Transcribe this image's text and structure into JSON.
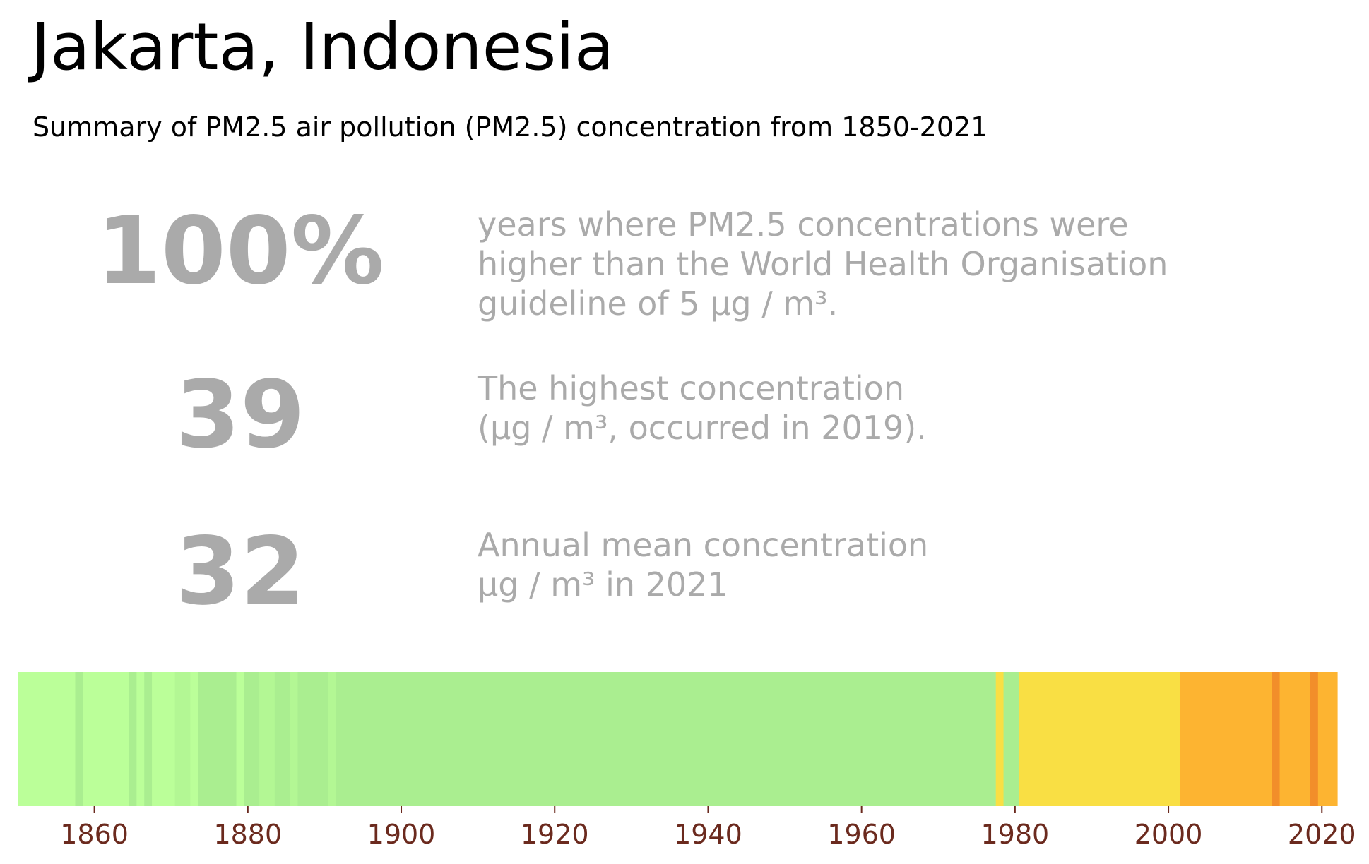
{
  "title": "Jakarta, Indonesia",
  "subtitle": "Summary of PM2.5 air pollution (PM2.5) concentration from 1850-2021",
  "stats": [
    {
      "value": "100%",
      "description": "years where PM2.5 concentrations were\nhigher than the World Health Organisation\nguideline of 5 µg / m³."
    },
    {
      "value": "39",
      "description": "The highest concentration\n(µg / m³, occurred in 2019)."
    },
    {
      "value": "32",
      "description": "Annual mean concentration\nµg / m³ in 2021"
    }
  ],
  "chart_data": {
    "type": "heatmap",
    "x_range": [
      1850,
      2022
    ],
    "xticks": [
      1860,
      1880,
      1900,
      1920,
      1940,
      1960,
      1980,
      2000,
      2020
    ],
    "tick_color": "#6b2a1e",
    "bands": [
      {
        "start": 1850,
        "end": 1857.5,
        "color": "#bbff99"
      },
      {
        "start": 1857.5,
        "end": 1858.5,
        "color": "#aaee90"
      },
      {
        "start": 1858.5,
        "end": 1864.5,
        "color": "#bbff99"
      },
      {
        "start": 1864.5,
        "end": 1865.5,
        "color": "#aaee90"
      },
      {
        "start": 1865.5,
        "end": 1866.5,
        "color": "#bbff99"
      },
      {
        "start": 1866.5,
        "end": 1867.5,
        "color": "#aaee90"
      },
      {
        "start": 1867.5,
        "end": 1870.5,
        "color": "#bbff99"
      },
      {
        "start": 1870.5,
        "end": 1872.5,
        "color": "#b3f794"
      },
      {
        "start": 1872.5,
        "end": 1873.5,
        "color": "#bbff99"
      },
      {
        "start": 1873.5,
        "end": 1878.5,
        "color": "#aaee90"
      },
      {
        "start": 1878.5,
        "end": 1879.5,
        "color": "#bbff99"
      },
      {
        "start": 1879.5,
        "end": 1881.5,
        "color": "#aaee90"
      },
      {
        "start": 1881.5,
        "end": 1883.5,
        "color": "#b3f794"
      },
      {
        "start": 1883.5,
        "end": 1885.5,
        "color": "#aaee90"
      },
      {
        "start": 1885.5,
        "end": 1886.5,
        "color": "#b3f794"
      },
      {
        "start": 1886.5,
        "end": 1890.5,
        "color": "#aaee90"
      },
      {
        "start": 1890.5,
        "end": 1891.5,
        "color": "#b3f794"
      },
      {
        "start": 1891.5,
        "end": 1977.5,
        "color": "#aaee90"
      },
      {
        "start": 1977.5,
        "end": 1978.5,
        "color": "#f9df44"
      },
      {
        "start": 1978.5,
        "end": 1980.5,
        "color": "#aaee90"
      },
      {
        "start": 1980.5,
        "end": 2001.5,
        "color": "#f9df44"
      },
      {
        "start": 2001.5,
        "end": 2013.5,
        "color": "#fdb431"
      },
      {
        "start": 2013.5,
        "end": 2014.5,
        "color": "#f28e2a"
      },
      {
        "start": 2014.5,
        "end": 2018.5,
        "color": "#fdb431"
      },
      {
        "start": 2018.5,
        "end": 2019.5,
        "color": "#f28e2a"
      },
      {
        "start": 2019.5,
        "end": 2022,
        "color": "#fdb431"
      }
    ]
  }
}
